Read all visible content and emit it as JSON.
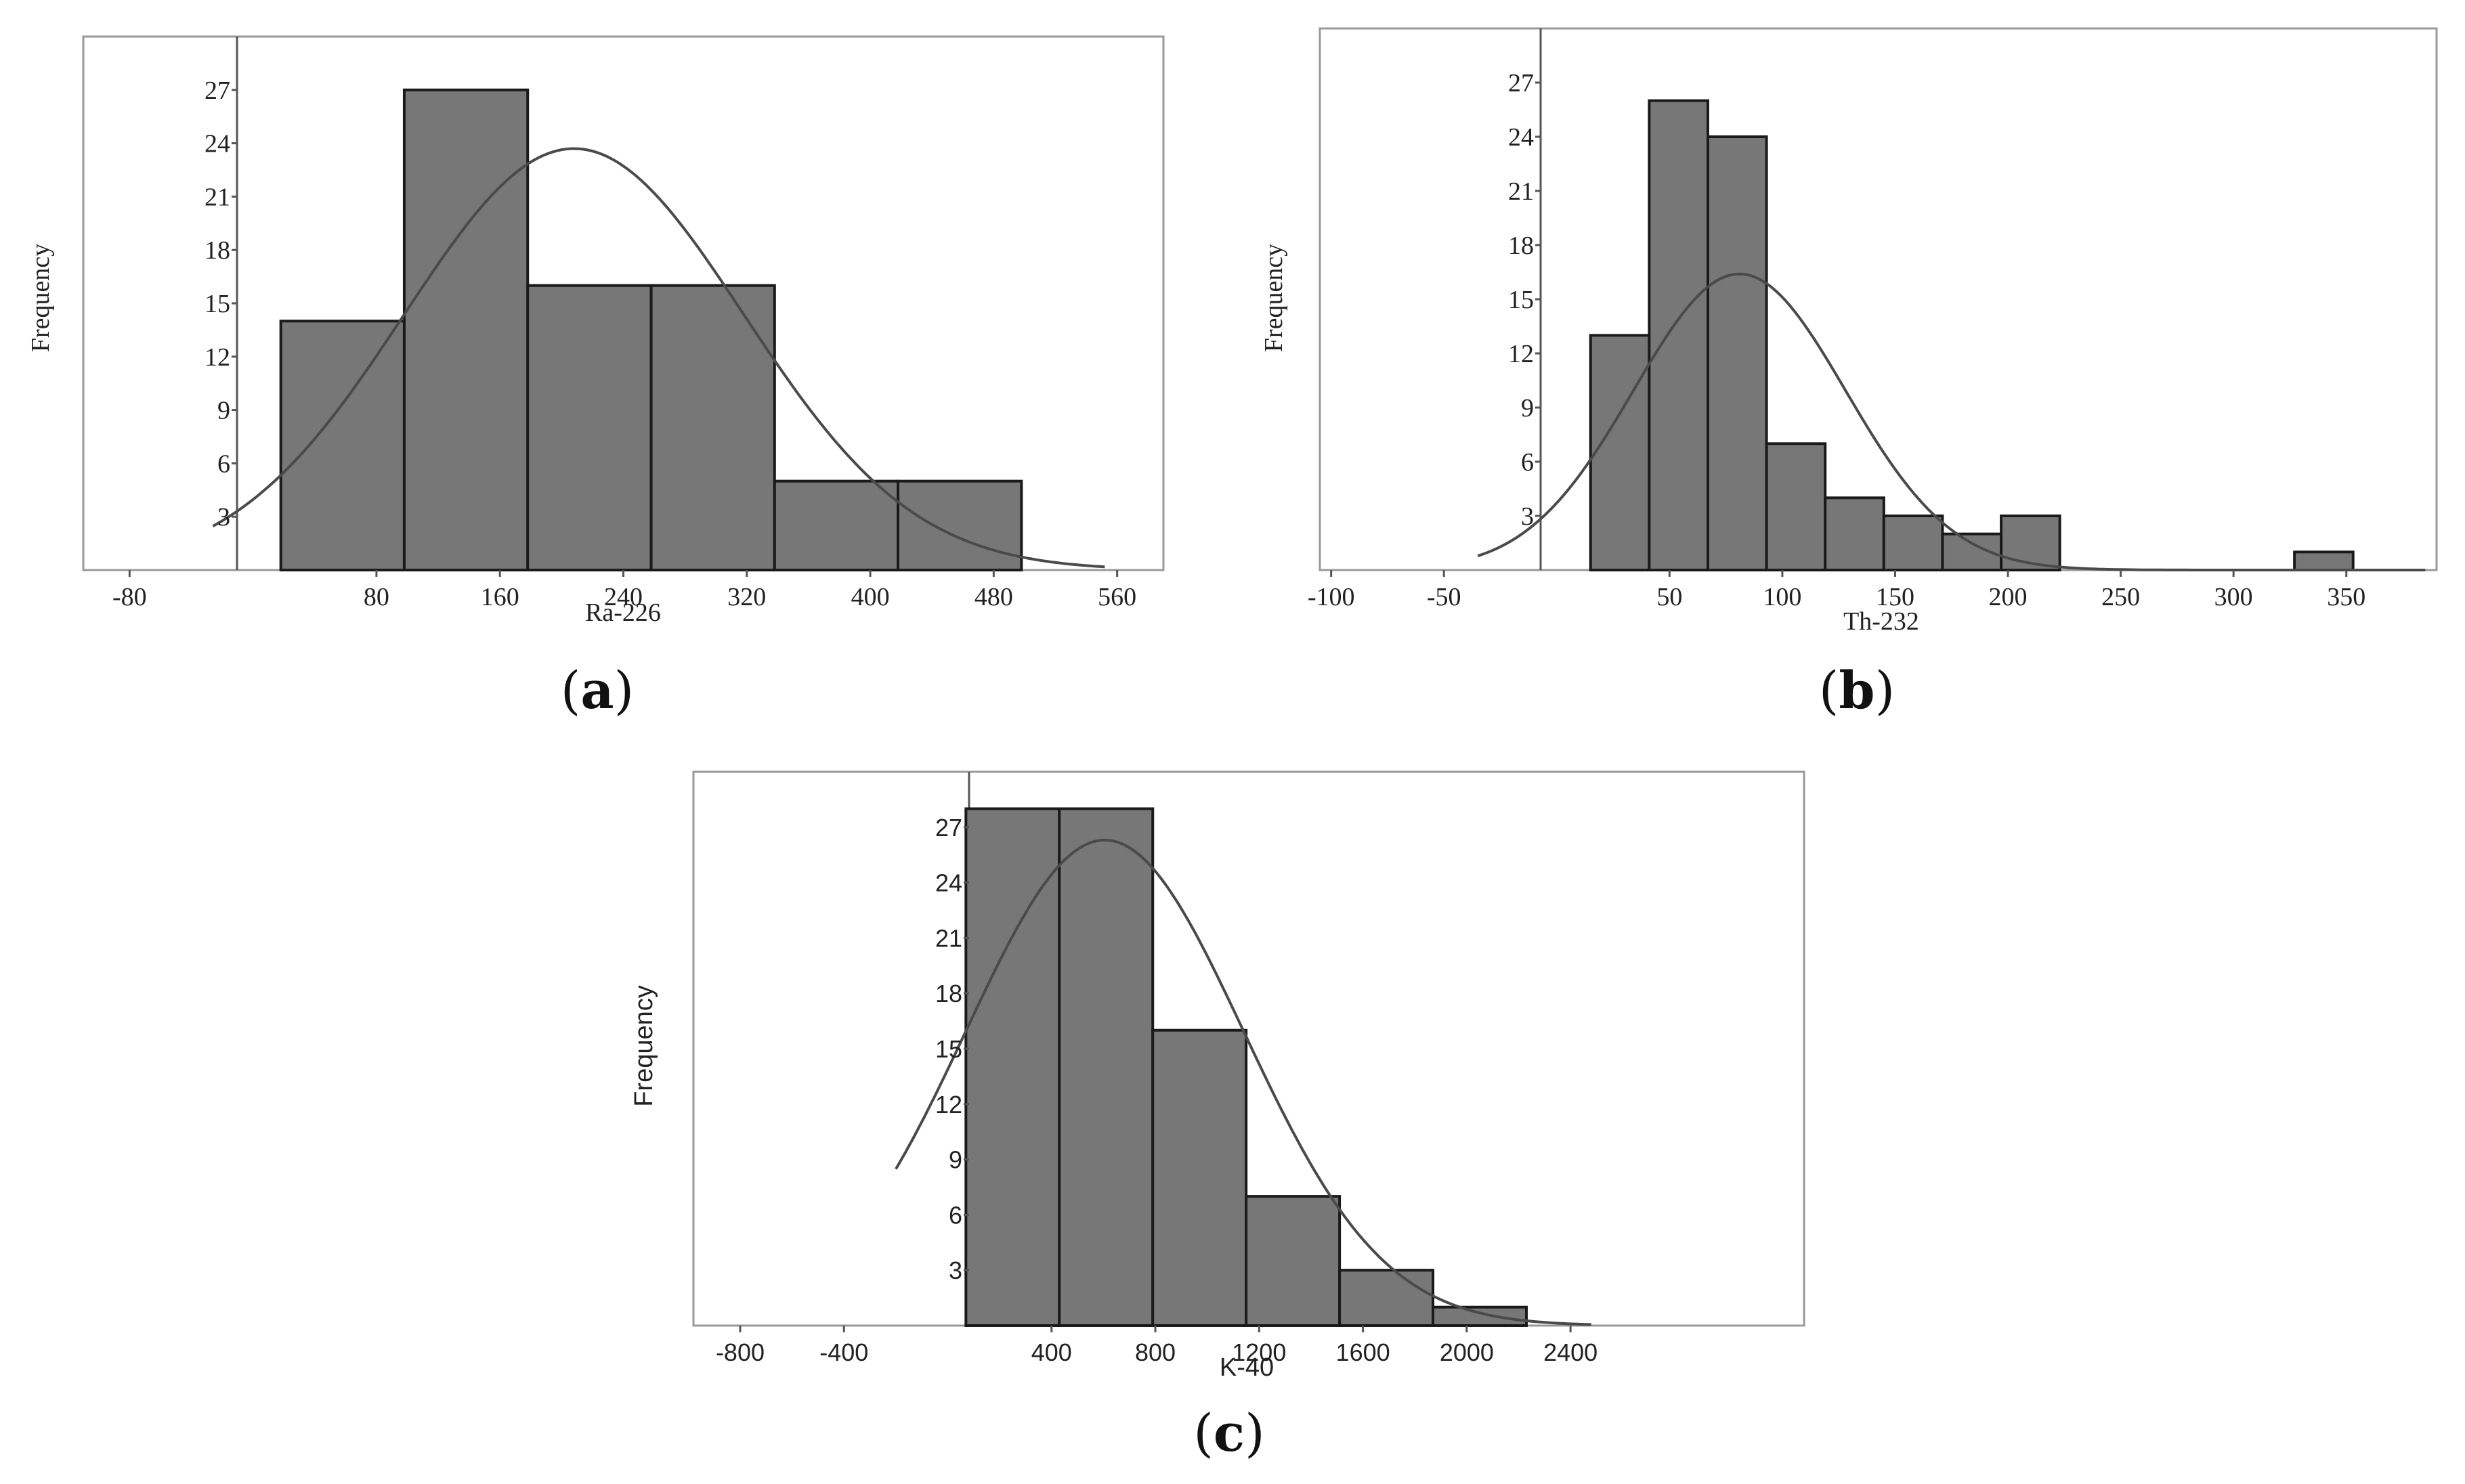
{
  "colors": {
    "bar_fill": "#777777",
    "bar_stroke": "#1a1a1a",
    "frame": "#999999",
    "curve": "#4a4a4a",
    "text": "#222222"
  },
  "captions": [
    {
      "open": "(",
      "letter": "a",
      "close": ")"
    },
    {
      "open": "(",
      "letter": "b",
      "close": ")"
    },
    {
      "open": "(",
      "letter": "c",
      "close": ")"
    }
  ],
  "chart_data": [
    {
      "type": "bar",
      "subtype": "histogram-with-normal-fit",
      "xlabel": "Ra-226",
      "ylabel": "Frequency",
      "xlim": [
        -110,
        590
      ],
      "ylim": [
        0,
        30
      ],
      "xticks": [
        -80,
        80,
        160,
        240,
        320,
        400,
        480,
        560
      ],
      "yticks": [
        3,
        6,
        9,
        12,
        15,
        18,
        21,
        24,
        27
      ],
      "grid": false,
      "bins": [
        {
          "x0": 18,
          "x1": 98,
          "count": 14
        },
        {
          "x0": 98,
          "x1": 178,
          "count": 27
        },
        {
          "x0": 178,
          "x1": 258,
          "count": 16
        },
        {
          "x0": 258,
          "x1": 338,
          "count": 16
        },
        {
          "x0": 338,
          "x1": 418,
          "count": 5
        },
        {
          "x0": 418,
          "x1": 498,
          "count": 5
        }
      ],
      "normal_fit": {
        "mean": 208,
        "sd": 110,
        "peak": 23.7,
        "x_range": [
          -26,
          552
        ]
      }
    },
    {
      "type": "bar",
      "subtype": "histogram-with-normal-fit",
      "xlabel": "Th-232",
      "ylabel": "Frequency",
      "xlim": [
        -105,
        390
      ],
      "ylim": [
        0,
        30
      ],
      "xticks": [
        -100,
        -50,
        50,
        100,
        150,
        200,
        250,
        300,
        350
      ],
      "yticks": [
        3,
        6,
        9,
        12,
        15,
        18,
        21,
        24,
        27
      ],
      "grid": false,
      "bins": [
        {
          "x0": 15,
          "x1": 41,
          "count": 13
        },
        {
          "x0": 41,
          "x1": 67,
          "count": 26
        },
        {
          "x0": 67,
          "x1": 93,
          "count": 24
        },
        {
          "x0": 93,
          "x1": 119,
          "count": 7
        },
        {
          "x0": 119,
          "x1": 145,
          "count": 4
        },
        {
          "x0": 145,
          "x1": 171,
          "count": 3
        },
        {
          "x0": 171,
          "x1": 197,
          "count": 2
        },
        {
          "x0": 197,
          "x1": 223,
          "count": 3
        },
        {
          "x0": 327,
          "x1": 353,
          "count": 1
        }
      ],
      "normal_fit": {
        "mean": 81,
        "sd": 47,
        "peak": 16.4,
        "x_range": [
          -35,
          385
        ]
      }
    },
    {
      "type": "bar",
      "subtype": "histogram-with-normal-fit",
      "xlabel": "K-40",
      "ylabel": "Frequency",
      "xlim": [
        -980,
        3300
      ],
      "ylim": [
        0,
        30
      ],
      "xticks": [
        -800,
        -400,
        400,
        800,
        1200,
        1600,
        2000,
        2400
      ],
      "yticks": [
        3,
        6,
        9,
        12,
        15,
        18,
        21,
        24,
        27
      ],
      "grid": false,
      "bins": [
        {
          "x0": 70,
          "x1": 430,
          "count": 28
        },
        {
          "x0": 430,
          "x1": 790,
          "count": 28
        },
        {
          "x0": 790,
          "x1": 1150,
          "count": 16
        },
        {
          "x0": 1150,
          "x1": 1510,
          "count": 7
        },
        {
          "x0": 1510,
          "x1": 1870,
          "count": 3
        },
        {
          "x0": 1870,
          "x1": 2230,
          "count": 1
        }
      ],
      "normal_fit": {
        "mean": 605,
        "sd": 535,
        "peak": 26.3,
        "x_range": [
          -200,
          2480
        ]
      }
    }
  ]
}
